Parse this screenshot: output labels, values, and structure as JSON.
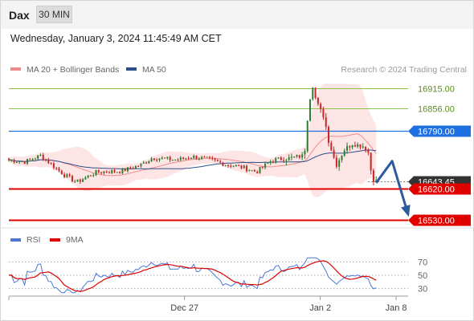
{
  "header": {
    "symbol": "Dax",
    "timeframe": "30 MIN",
    "datetime": "Wednesday, January 3, 2024 11:45:49 AM CET"
  },
  "colors": {
    "bull": "#2e7d32",
    "bear": "#c62828",
    "ma20": "#f08a8a",
    "ma50": "#2b4f8a",
    "bands_fill": "#fde0e0",
    "resistance": "#8bc34a",
    "pivot": "#1e6fe0",
    "support": "#e00000",
    "current": "#333333",
    "arrow": "#2d5a9e",
    "rsi": "#4a78d6",
    "rsi_ma": "#e00000"
  },
  "chart_data": [
    {
      "type": "candlestick",
      "legend": [
        {
          "name": "MA 20 + Bollinger Bands",
          "color": "#f08a8a"
        },
        {
          "name": "MA 50",
          "color": "#2b4f8a"
        }
      ],
      "watermark": "Research © 2024 Trading Central",
      "ylim": [
        16508,
        16998
      ],
      "xlim": [
        0,
        100
      ],
      "x_ticks": [
        {
          "x": 44,
          "label": "Dec 27"
        },
        {
          "x": 78,
          "label": "Jan 2"
        },
        {
          "x": 97,
          "label": "Jan 8"
        }
      ],
      "levels": [
        {
          "value": 16915.0,
          "label": "16915.00",
          "kind": "resistance"
        },
        {
          "value": 16856.0,
          "label": "16856.00",
          "kind": "resistance"
        },
        {
          "value": 16790.0,
          "label": "16790.00",
          "kind": "pivot"
        },
        {
          "value": 16643.45,
          "label": "16643.45",
          "kind": "current"
        },
        {
          "value": 16620.0,
          "label": "16620.00",
          "kind": "support"
        },
        {
          "value": 16530.0,
          "label": "16530.00",
          "kind": "support"
        }
      ],
      "forecast_arrow": [
        [
          92,
          16638
        ],
        [
          96,
          16702
        ],
        [
          100,
          16545
        ]
      ]
    },
    {
      "type": "line",
      "legend": [
        {
          "name": "RSI",
          "color": "#4a78d6"
        },
        {
          "name": "9MA",
          "color": "#e00000"
        }
      ],
      "ylim": [
        20,
        80
      ],
      "ticks": [
        70,
        50,
        30
      ]
    }
  ]
}
